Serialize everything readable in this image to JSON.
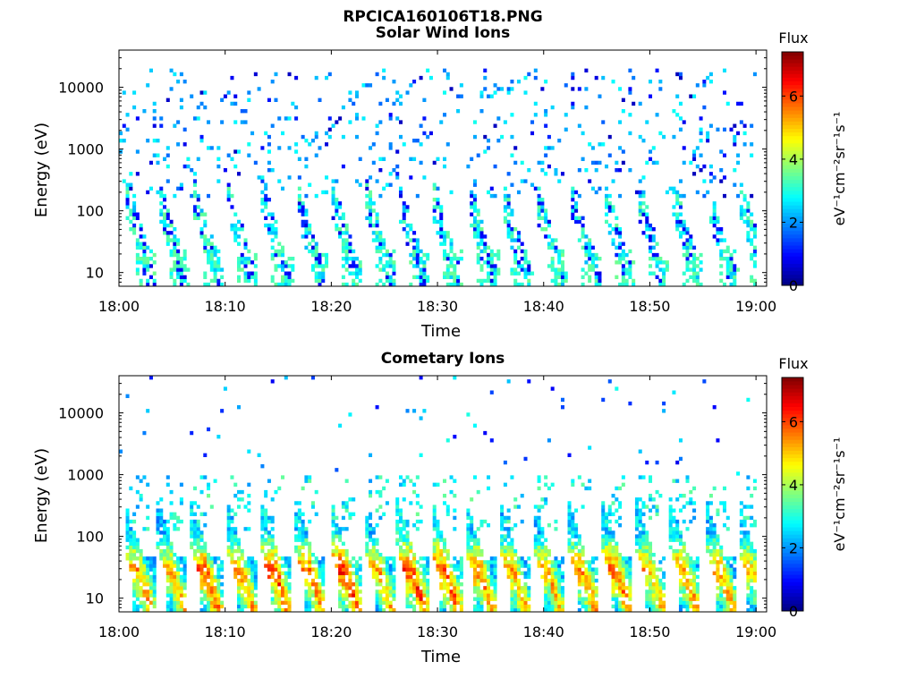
{
  "figure": {
    "title": "RPCICA160106T18.PNG"
  },
  "colors": {
    "colormap": "jet",
    "background": "#ffffff",
    "axis": "#000000"
  },
  "chart_data": [
    {
      "type": "heatmap",
      "title": "Solar Wind Ions",
      "xlabel": "Time",
      "ylabel": "Energy (eV)",
      "x_ticks": [
        "18:00",
        "18:10",
        "18:20",
        "18:30",
        "18:40",
        "18:50",
        "19:00"
      ],
      "x_range": [
        "18:00",
        "19:01"
      ],
      "y_scale": "log",
      "y_ticks": [
        10,
        100,
        1000,
        10000
      ],
      "y_tick_labels": [
        "10",
        "100",
        "1000",
        "10000"
      ],
      "ylim": [
        6,
        40000
      ],
      "colorbar": {
        "title": "Flux",
        "label": "eV⁻¹cm⁻²sr⁻¹s⁻¹",
        "ticks": [
          0,
          2,
          4,
          6
        ],
        "range": [
          0,
          7.4
        ]
      },
      "cycles": [
        {
          "t_min": 2.0,
          "peak": 3.5
        },
        {
          "t_min": 5.1,
          "peak": 2.9
        },
        {
          "t_min": 8.4,
          "peak": 3.6
        },
        {
          "t_min": 11.5,
          "peak": 3.0
        },
        {
          "t_min": 14.8,
          "peak": 3.4
        },
        {
          "t_min": 18.0,
          "peak": 3.1
        },
        {
          "t_min": 21.4,
          "peak": 3.6
        },
        {
          "t_min": 24.6,
          "peak": 3.0
        },
        {
          "t_min": 27.6,
          "peak": 3.5
        },
        {
          "t_min": 30.8,
          "peak": 3.2
        },
        {
          "t_min": 34.2,
          "peak": 3.0
        },
        {
          "t_min": 37.4,
          "peak": 2.9
        },
        {
          "t_min": 40.6,
          "peak": 3.3
        },
        {
          "t_min": 43.9,
          "peak": 3.1
        },
        {
          "t_min": 47.0,
          "peak": 3.5
        },
        {
          "t_min": 50.2,
          "peak": 3.0
        },
        {
          "t_min": 53.5,
          "peak": 3.2
        },
        {
          "t_min": 56.8,
          "peak": 3.3
        },
        {
          "t_min": 59.8,
          "peak": 3.0
        }
      ]
    },
    {
      "type": "heatmap",
      "title": "Cometary Ions",
      "xlabel": "Time",
      "ylabel": "Energy (eV)",
      "x_ticks": [
        "18:00",
        "18:10",
        "18:20",
        "18:30",
        "18:40",
        "18:50",
        "19:00"
      ],
      "x_range": [
        "18:00",
        "19:01"
      ],
      "y_scale": "log",
      "y_ticks": [
        10,
        100,
        1000,
        10000
      ],
      "y_tick_labels": [
        "10",
        "100",
        "1000",
        "10000"
      ],
      "ylim": [
        6,
        40000
      ],
      "colorbar": {
        "title": "Flux",
        "label": "eV⁻¹cm⁻²sr⁻¹s⁻¹",
        "ticks": [
          0,
          2,
          4,
          6
        ],
        "range": [
          0,
          7.4
        ]
      },
      "cycles": [
        {
          "t_min": 1.8,
          "peak": 5.4
        },
        {
          "t_min": 4.9,
          "peak": 5.2
        },
        {
          "t_min": 8.1,
          "peak": 5.8
        },
        {
          "t_min": 11.4,
          "peak": 5.5
        },
        {
          "t_min": 14.6,
          "peak": 6.0
        },
        {
          "t_min": 17.9,
          "peak": 5.6
        },
        {
          "t_min": 21.2,
          "peak": 6.3
        },
        {
          "t_min": 24.4,
          "peak": 5.3
        },
        {
          "t_min": 27.5,
          "peak": 6.1
        },
        {
          "t_min": 30.7,
          "peak": 6.0
        },
        {
          "t_min": 33.9,
          "peak": 5.6
        },
        {
          "t_min": 37.1,
          "peak": 5.4
        },
        {
          "t_min": 40.3,
          "peak": 5.2
        },
        {
          "t_min": 43.6,
          "peak": 5.5
        },
        {
          "t_min": 46.8,
          "peak": 5.8
        },
        {
          "t_min": 50.0,
          "peak": 5.3
        },
        {
          "t_min": 53.2,
          "peak": 5.6
        },
        {
          "t_min": 56.6,
          "peak": 5.4
        },
        {
          "t_min": 59.6,
          "peak": 5.0
        }
      ]
    }
  ]
}
